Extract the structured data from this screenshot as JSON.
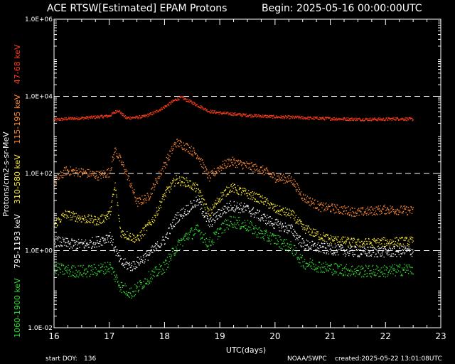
{
  "header": {
    "title": "ACE RTSW[Estimated] EPAM Protons",
    "begin": "Begin: 2025-05-16 00:00:00UTC"
  },
  "footer": {
    "start_doy_label": "start DOY:",
    "start_doy": "136",
    "source": "NOAA/SWPC",
    "created": "created:2025-05-22 13:01:08UTC"
  },
  "chart_data": {
    "type": "scatter",
    "title": "ACE RTSW[Estimated] EPAM Protons",
    "xlabel": "UTC(days)",
    "ylabel": "Protons/cm2-s-sr-MeV",
    "xlim": [
      16,
      23
    ],
    "ylim": [
      0.01,
      1000000
    ],
    "yscale": "log",
    "x_ticks": [
      "16",
      "17",
      "18",
      "19",
      "20",
      "21",
      "22",
      "23"
    ],
    "y_ticks": [
      "1.0E-02",
      "1.0E+00",
      "1.0E+02",
      "1.0E+04",
      "1.0E+06"
    ],
    "grid": "dashed lines at 1.0E+00, 1.0E+02, 1.0E+04",
    "series": [
      {
        "name": "47-68 keV",
        "color": "#ff3b1a",
        "x": [
          16.0,
          16.25,
          16.5,
          16.8,
          17.0,
          17.15,
          17.3,
          17.6,
          17.8,
          18.0,
          18.2,
          18.3,
          18.5,
          18.8,
          19.0,
          19.5,
          20.0,
          20.4,
          20.6,
          21.0,
          21.5,
          22.0,
          22.2,
          22.5
        ],
        "y": [
          2500,
          2700,
          2800,
          3000,
          3200,
          4500,
          2800,
          3000,
          3800,
          5500,
          8500,
          9500,
          7000,
          4200,
          3800,
          3300,
          3000,
          2900,
          2800,
          2700,
          2600,
          2600,
          2700,
          2600
        ]
      },
      {
        "name": "115-195 keV",
        "color": "#ff8a33",
        "x": [
          16.0,
          16.2,
          16.5,
          16.8,
          17.0,
          17.1,
          17.3,
          17.5,
          17.7,
          18.0,
          18.2,
          18.4,
          18.6,
          18.8,
          19.0,
          19.2,
          19.5,
          19.8,
          20.0,
          20.3,
          20.5,
          20.8,
          21.0,
          21.5,
          22.0,
          22.5
        ],
        "y": [
          60,
          120,
          110,
          90,
          110,
          420,
          110,
          18,
          25,
          180,
          650,
          500,
          300,
          80,
          150,
          210,
          160,
          120,
          80,
          70,
          25,
          14,
          13,
          10,
          12,
          11
        ]
      },
      {
        "name": "310-580 keV",
        "color": "#ffef33",
        "x": [
          16.0,
          16.2,
          16.5,
          16.8,
          17.0,
          17.1,
          17.2,
          17.5,
          17.8,
          18.0,
          18.2,
          18.4,
          18.6,
          18.8,
          19.0,
          19.2,
          19.5,
          19.8,
          20.0,
          20.3,
          20.5,
          20.8,
          21.0,
          21.5,
          22.0,
          22.5
        ],
        "y": [
          5,
          9,
          7,
          6,
          9,
          50,
          3,
          2,
          7,
          30,
          70,
          60,
          40,
          9,
          25,
          45,
          30,
          20,
          12,
          9,
          4,
          2.5,
          2,
          1.6,
          1.7,
          1.8
        ]
      },
      {
        "name": "795-1193 keV",
        "color": "#ffffff",
        "x": [
          16.0,
          16.3,
          16.6,
          16.9,
          17.0,
          17.2,
          17.4,
          17.7,
          18.0,
          18.2,
          18.4,
          18.6,
          18.8,
          19.0,
          19.2,
          19.5,
          19.8,
          20.0,
          20.3,
          20.5,
          20.8,
          21.0,
          21.5,
          22.0,
          22.5
        ],
        "y": [
          1.8,
          1.5,
          1.5,
          2.0,
          2.5,
          0.5,
          0.4,
          0.8,
          2,
          7,
          12,
          20,
          5,
          10,
          15,
          12,
          7,
          5,
          3.5,
          1.5,
          1.2,
          1.1,
          0.95,
          0.95,
          1.0
        ]
      },
      {
        "name": "1060-1900 keV",
        "color": "#33dd33",
        "x": [
          16.0,
          16.3,
          16.6,
          16.9,
          17.0,
          17.2,
          17.4,
          17.7,
          18.0,
          18.2,
          18.4,
          18.6,
          18.8,
          19.0,
          19.2,
          19.5,
          19.8,
          20.0,
          20.3,
          20.5,
          20.8,
          21.0,
          21.5,
          22.0,
          22.5
        ],
        "y": [
          0.35,
          0.3,
          0.3,
          0.35,
          0.4,
          0.12,
          0.08,
          0.2,
          0.4,
          1.2,
          2.5,
          3.5,
          1.5,
          3.5,
          6,
          4.5,
          2.5,
          2.0,
          1.2,
          0.5,
          0.4,
          0.35,
          0.3,
          0.3,
          0.35
        ]
      }
    ]
  }
}
